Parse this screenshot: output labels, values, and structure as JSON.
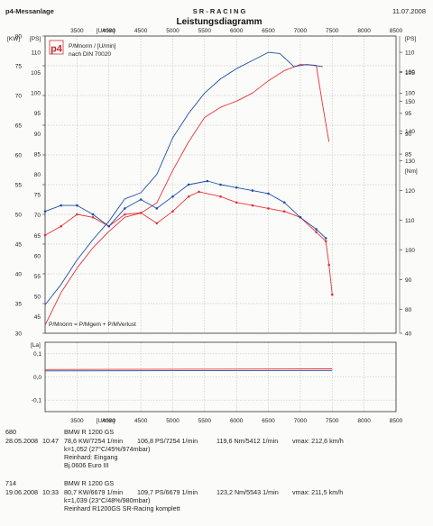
{
  "header": {
    "left": "p4-Messanlage",
    "center": "S R - R A C I N G",
    "title": "Leistungsdiagramm",
    "date": "11.07.2008"
  },
  "logo_text": "p4",
  "legend": {
    "line1": "P/Mnorm / [U/min]",
    "line2": "nach DIN 70020"
  },
  "formula": "P/Mnorm = P/Mgem + P/MVerlust",
  "colors": {
    "run1": "#e8333b",
    "run2": "#1e4fa8",
    "axis": "#333333",
    "grid": "#a8a8a8"
  },
  "chart_data": [
    {
      "type": "line",
      "title": "Leistungsdiagramm",
      "xlabel": "[U/min]",
      "x_ticks": [
        "3500",
        "4000",
        "4500",
        "5000",
        "5500",
        "6000",
        "6500",
        "7000",
        "7500",
        "8000",
        "8500"
      ],
      "xlim": [
        3000,
        8500
      ],
      "axis_labels": {
        "kw": "[KW]",
        "ps": "[PS]",
        "ps_right": "[PS]",
        "nm": "[Nm]"
      },
      "left_kw_ticks": [
        "80",
        "75",
        "70",
        "65",
        "60",
        "55",
        "50",
        "45",
        "40",
        "35",
        "30"
      ],
      "left_kw_range": [
        30,
        80
      ],
      "left_ps_ticks": [
        "110",
        "105",
        "100",
        "95",
        "90",
        "85",
        "80",
        "75",
        "70",
        "65",
        "60",
        "55",
        "50",
        "45"
      ],
      "ps_range": [
        41,
        114
      ],
      "right_ps_ticks": [
        "110",
        "105",
        "100",
        "95",
        "90",
        "85"
      ],
      "right_nm_ticks": [
        "160",
        "150",
        "140",
        "130",
        "120",
        "110",
        "100",
        "90",
        "80",
        "40"
      ],
      "nm_range": [
        72,
        172
      ],
      "grid": true,
      "series": [
        {
          "name": "BMW R 1200 GS",
          "quantity": "power",
          "unit": "PS",
          "color": "#e8333b",
          "x": [
            3000,
            3250,
            3500,
            3750,
            4000,
            4250,
            4500,
            4750,
            5000,
            5250,
            5500,
            5750,
            6000,
            6250,
            6500,
            6750,
            7000,
            7250,
            7350,
            7450
          ],
          "values": [
            43,
            51,
            57,
            62,
            66,
            69.5,
            70.5,
            73,
            81,
            88,
            94,
            96.5,
            98,
            100,
            103,
            105.5,
            107,
            106.8,
            97,
            88
          ]
        },
        {
          "name": "BMW R 1200 GS",
          "quantity": "power",
          "unit": "PS",
          "color": "#1e4fa8",
          "x": [
            3000,
            3250,
            3500,
            3750,
            4000,
            4250,
            4500,
            4750,
            5000,
            5250,
            5500,
            5750,
            6000,
            6250,
            6500,
            6679,
            6900,
            7100,
            7350
          ],
          "values": [
            48,
            53,
            59,
            64,
            68.5,
            74,
            75.5,
            80,
            89,
            95,
            100,
            103.5,
            106,
            108,
            110,
            109.7,
            106.5,
            107,
            106.5
          ]
        },
        {
          "name": "BMW R 1200 GS",
          "quantity": "torque",
          "unit": "Nm",
          "color": "#e8333b",
          "x": [
            3000,
            3250,
            3500,
            3750,
            4000,
            4250,
            4500,
            4750,
            5000,
            5250,
            5412,
            5750,
            6000,
            6250,
            6500,
            6750,
            7000,
            7250,
            7400,
            7450,
            7500
          ],
          "values": [
            105,
            108,
            112,
            111,
            108,
            112,
            112.5,
            109,
            113,
            118,
            119.6,
            118,
            116,
            115,
            114,
            113,
            111,
            106,
            103,
            95,
            85
          ]
        },
        {
          "name": "BMW R 1200 GS",
          "quantity": "torque",
          "unit": "Nm",
          "color": "#1e4fa8",
          "x": [
            3000,
            3250,
            3500,
            3750,
            4000,
            4250,
            4500,
            4750,
            5000,
            5250,
            5543,
            5750,
            6000,
            6250,
            6500,
            6750,
            7000,
            7250,
            7400
          ],
          "values": [
            113,
            115,
            115,
            112,
            108,
            114,
            117,
            114,
            118,
            122,
            123.2,
            122,
            121,
            120,
            119,
            116,
            111,
            107,
            104
          ]
        }
      ]
    },
    {
      "type": "line",
      "title": "",
      "ylabel": "[La]",
      "y_ticks": [
        "0,1",
        "0,0",
        "-0,1"
      ],
      "ylim": [
        -0.15,
        0.15
      ],
      "x_ticks": [
        "3500",
        "4000",
        "4500",
        "5000",
        "5500",
        "6000",
        "6500",
        "7000",
        "7500",
        "8000",
        "8500"
      ],
      "xlim": [
        3000,
        8500
      ],
      "xlabel": "[U/min]",
      "series": [
        {
          "name": "BMW R 1200 GS",
          "color": "#e8333b",
          "x": [
            3000,
            7500
          ],
          "values": [
            0.032,
            0.035
          ]
        },
        {
          "name": "BMW R 1200 GS",
          "color": "#1e4fa8",
          "x": [
            3000,
            7500
          ],
          "values": [
            0.026,
            0.028
          ]
        }
      ]
    }
  ],
  "records": [
    {
      "id": "680",
      "date": "28.05.2008",
      "time": "10:47",
      "vehicle": "BMW R 1200 GS",
      "kw": "78,6 KW/7254 1/min",
      "ps": "106,8 PS/7254 1/min",
      "nm": "119,6 Nm/5412 1/min",
      "vmax": "vmax: 212,6 km/h",
      "k": "k=1,052 (27°C/45%/974mbar)",
      "note1": "Reinhard: Eingang",
      "note2": "Bj.0606 Euro III"
    },
    {
      "id": "714",
      "date": "19.06.2008",
      "time": "10:33",
      "vehicle": "BMW R 1200 GS",
      "kw": "80,7 KW/6679 1/min",
      "ps": "109,7 PS/6679 1/min",
      "nm": "123,2 Nm/5543 1/min",
      "vmax": "vmax: 211,5 km/h",
      "k": "k=1,039 (23°C/48%/980mbar)",
      "note1": "Reinhard R1200GS SR-Racing komplett",
      "note2": ""
    }
  ]
}
